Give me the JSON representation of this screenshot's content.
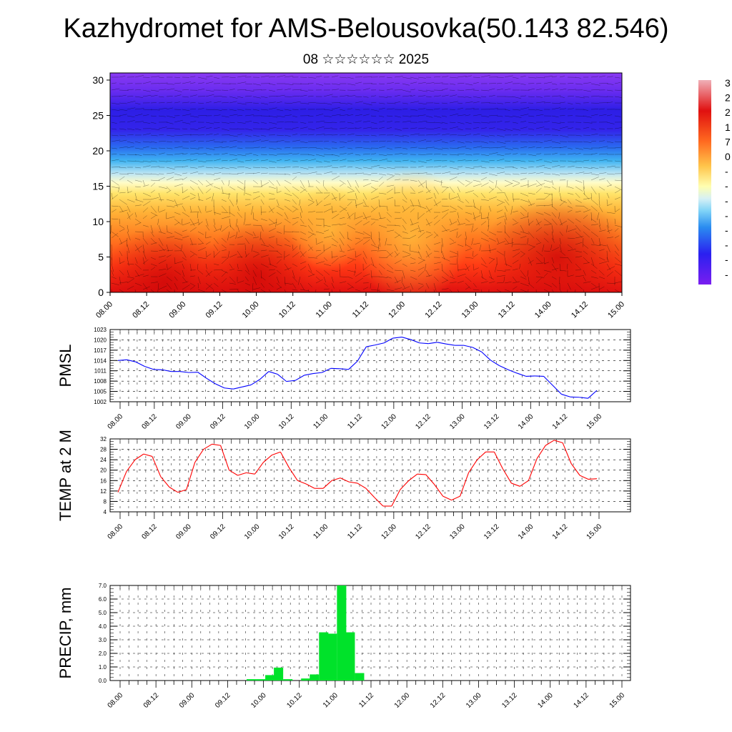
{
  "header": {
    "title": "Kazhydromet for AMS-Belousovka(50.143 82.546)",
    "subtitle": "08 ☆☆☆☆☆☆ 2025"
  },
  "colorbar": {
    "visible_labels": [
      "3",
      "2",
      "2",
      "1",
      "7",
      "0",
      "-",
      "-",
      "-",
      "-",
      "-",
      "-",
      "-",
      "-"
    ]
  },
  "chart_data": [
    {
      "type": "heatmap",
      "title": "",
      "ylim": [
        0,
        30
      ],
      "yticks": [
        0,
        5,
        10,
        15,
        20,
        25,
        30
      ],
      "x_tick_labels": [
        "08.00",
        "08.12",
        "09.00",
        "09.12",
        "10.00",
        "10.12",
        "11.00",
        "11.12",
        "12.00",
        "12.12",
        "13.00",
        "13.12",
        "14.00",
        "14.12",
        "15.00"
      ],
      "color_scale": [
        "#7a1ef0",
        "#3c2cf0",
        "#2a62f0",
        "#29a6f5",
        "#7fd3f7",
        "#c8ecf5",
        "#ffffb0",
        "#fff176",
        "#ffd451",
        "#ffb13a",
        "#ff8a2a",
        "#ff5a1a",
        "#f02a12",
        "#c81010",
        "#e8707a"
      ],
      "note_overlay": "wind vectors"
    },
    {
      "type": "line",
      "ylabel": "PMSL",
      "ylim": [
        1002,
        1023
      ],
      "yticks": [
        1002,
        1005,
        1008,
        1011,
        1014,
        1017,
        1020,
        1023
      ],
      "x_tick_labels": [
        "08.00",
        "08.12",
        "09.00",
        "09.12",
        "10.00",
        "10.12",
        "11.00",
        "11.12",
        "12.00",
        "12.12",
        "13.00",
        "13.12",
        "14.00",
        "14.12",
        "15.00"
      ],
      "color": "#0000ff",
      "values": [
        1014.0,
        1014.2,
        1013.6,
        1012.3,
        1011.4,
        1011.3,
        1010.8,
        1010.8,
        1010.5,
        1010.6,
        1008.8,
        1007.2,
        1006.0,
        1005.7,
        1006.3,
        1006.9,
        1008.5,
        1010.8,
        1010.0,
        1007.9,
        1008.2,
        1009.7,
        1010.2,
        1010.5,
        1011.7,
        1011.6,
        1011.4,
        1013.8,
        1018.0,
        1018.5,
        1019.1,
        1020.5,
        1020.8,
        1020.1,
        1019.1,
        1018.9,
        1019.3,
        1018.8,
        1018.4,
        1018.4,
        1017.8,
        1016.5,
        1014.1,
        1012.5,
        1011.3,
        1010.3,
        1009.4,
        1009.5,
        1009.4,
        1006.8,
        1004.2,
        1003.4,
        1003.3,
        1003.0,
        1005.3
      ]
    },
    {
      "type": "line",
      "ylabel": "TEMP at 2 M",
      "ylim": [
        4,
        32
      ],
      "yticks": [
        4,
        8,
        12,
        16,
        20,
        24,
        28,
        32
      ],
      "x_tick_labels": [
        "08.00",
        "08.12",
        "09.00",
        "09.12",
        "10.00",
        "10.12",
        "11.00",
        "11.12",
        "12.00",
        "12.12",
        "13.00",
        "13.12",
        "14.00",
        "14.12",
        "15.00"
      ],
      "color": "#ff0000",
      "values": [
        11.5,
        19.5,
        24.0,
        26.2,
        25.3,
        17.5,
        13.5,
        11.5,
        12.5,
        23.0,
        28.0,
        30.0,
        29.5,
        20.0,
        18.0,
        19.0,
        18.5,
        23.0,
        25.8,
        27.0,
        21.0,
        16.0,
        14.7,
        13.0,
        13.0,
        16.0,
        17.0,
        15.5,
        15.0,
        13.0,
        9.5,
        6.2,
        6.2,
        12.5,
        16.0,
        18.5,
        18.3,
        14.5,
        10.0,
        8.5,
        10.0,
        19.0,
        24.0,
        27.0,
        27.0,
        20.5,
        15.0,
        13.8,
        16.0,
        24.5,
        29.5,
        31.5,
        30.5,
        22.5,
        18.0,
        16.5,
        16.7
      ]
    },
    {
      "type": "bar",
      "ylabel": "PRECIP, mm",
      "ylim": [
        0,
        7
      ],
      "yticks": [
        "0.0",
        "1.0",
        "2.0",
        "3.0",
        "4.0",
        "5.0",
        "6.0",
        "7.0"
      ],
      "x_tick_labels": [
        "08.00",
        "08.12",
        "09.00",
        "09.12",
        "10.00",
        "10.12",
        "11.00",
        "11.12",
        "12.00",
        "12.12",
        "13.00",
        "13.12",
        "14.00",
        "14.12",
        "15.00"
      ],
      "color": "#00e22a",
      "bars": [
        {
          "x": 1.83,
          "value": 0.1
        },
        {
          "x": 1.96,
          "value": 0.1
        },
        {
          "x": 2.09,
          "value": 0.4
        },
        {
          "x": 2.21,
          "value": 0.95
        },
        {
          "x": 2.34,
          "value": 0.1
        },
        {
          "x": 2.59,
          "value": 0.15
        },
        {
          "x": 2.71,
          "value": 0.45
        },
        {
          "x": 2.84,
          "value": 3.55
        },
        {
          "x": 2.96,
          "value": 3.45
        },
        {
          "x": 3.09,
          "value": 7.0
        },
        {
          "x": 3.21,
          "value": 3.55
        },
        {
          "x": 3.34,
          "value": 0.55
        }
      ]
    }
  ]
}
